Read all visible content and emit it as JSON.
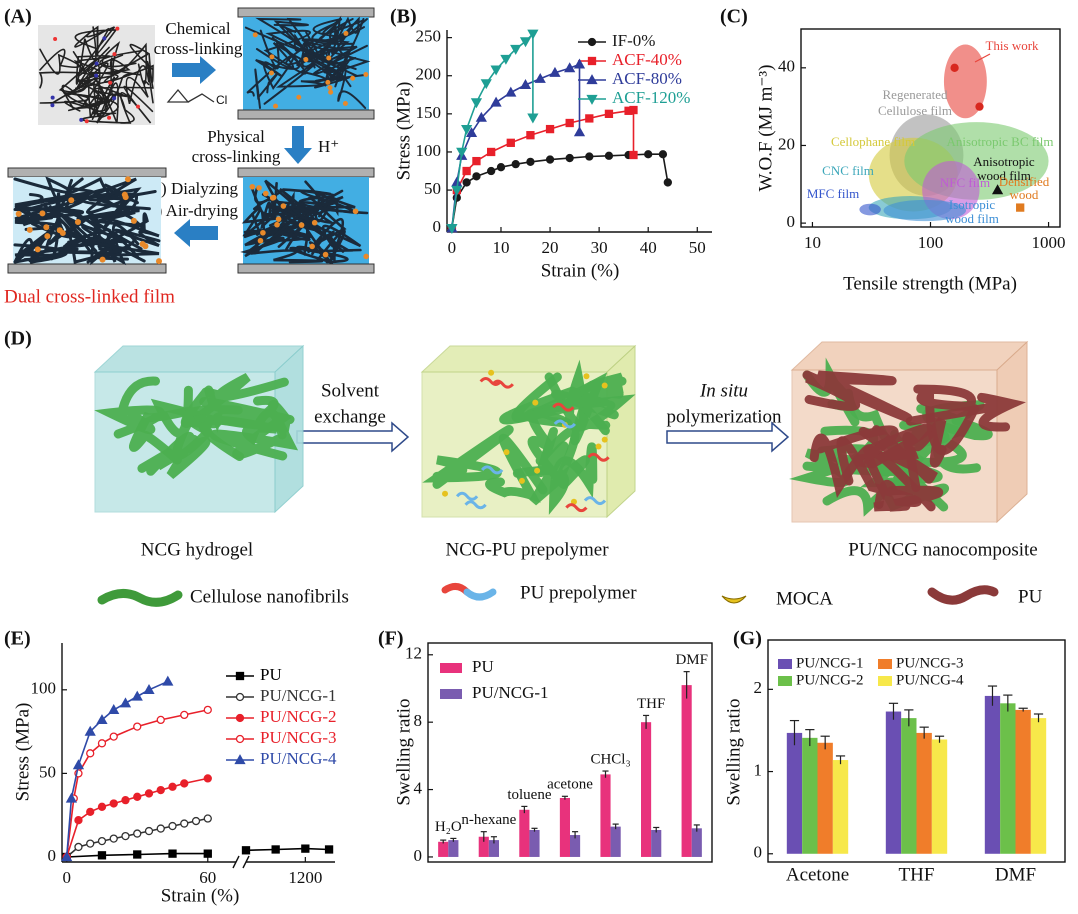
{
  "chart_data": [
    {
      "type": "line",
      "panel": "(B)",
      "x_label": "Strain (%)",
      "y_label": "Stress (MPa)",
      "frame": "axes",
      "xlim": [
        -1,
        53
      ],
      "ylim": [
        -5,
        260
      ],
      "xticks": [
        0,
        10,
        20,
        30,
        40,
        50
      ],
      "yticks": [
        0,
        50,
        100,
        150,
        200,
        250
      ],
      "legend": "upper right",
      "series": [
        {
          "name": "IF-0%",
          "color": "#1a1a1a",
          "marker": "circle",
          "filled": true,
          "x": [
            0,
            1,
            3,
            5,
            8,
            10,
            13,
            16,
            20,
            24,
            28,
            32,
            36,
            40,
            43,
            44
          ],
          "values": [
            0,
            40,
            60,
            68,
            75,
            80,
            84,
            87,
            90,
            92,
            94,
            95,
            96,
            97,
            97,
            60
          ]
        },
        {
          "name": "ACF-40%",
          "color": "#e8202a",
          "marker": "square",
          "filled": true,
          "x": [
            0,
            1,
            3,
            5,
            8,
            12,
            16,
            20,
            24,
            28,
            32,
            36,
            37,
            37
          ],
          "values": [
            0,
            50,
            75,
            88,
            100,
            112,
            122,
            130,
            138,
            144,
            150,
            154,
            155,
            96
          ]
        },
        {
          "name": "ACF-80%",
          "color": "#2f3c9a",
          "marker": "triangle-up",
          "filled": true,
          "x": [
            0,
            1,
            2,
            4,
            6,
            9,
            12,
            15,
            18,
            21,
            24,
            26,
            26
          ],
          "values": [
            0,
            60,
            95,
            125,
            145,
            165,
            178,
            188,
            196,
            204,
            210,
            215,
            126
          ]
        },
        {
          "name": "ACF-120%",
          "color": "#1e9f94",
          "marker": "triangle-down",
          "filled": true,
          "x": [
            0,
            1,
            2,
            3,
            5,
            7,
            9,
            11,
            13,
            15,
            16.5,
            16.5
          ],
          "values": [
            0,
            50,
            100,
            130,
            165,
            190,
            208,
            222,
            235,
            245,
            255,
            145
          ]
        }
      ]
    },
    {
      "type": "scatter",
      "panel": "(C)",
      "x_label": "Tensile strength (MPa)",
      "y_label": "W.O.F (MJ m⁻³)",
      "frame": "box",
      "xscale": "log",
      "xlim": [
        8,
        1250
      ],
      "ylim": [
        -1,
        50
      ],
      "xticks": [
        10,
        100,
        1000
      ],
      "yticks": [
        0,
        20,
        40
      ],
      "regions": [
        {
          "name": [
            "This work"
          ],
          "color": "#e8453c",
          "x": [
            130,
            300
          ],
          "y": [
            27,
            46
          ]
        },
        {
          "name": [
            "Regenerated",
            "Cellulose film"
          ],
          "color": "#9a9a9a",
          "x": [
            45,
            190
          ],
          "y": [
            7,
            28
          ]
        },
        {
          "name": [
            "Cellophane film"
          ],
          "color": "#d4c93a",
          "x": [
            30,
            170
          ],
          "y": [
            3,
            22
          ]
        },
        {
          "name": [
            "Anisotropic BC film"
          ],
          "color": "#7bc96f",
          "x": [
            60,
            1000
          ],
          "y": [
            6,
            26
          ]
        },
        {
          "name": [
            "CNC film"
          ],
          "color": "#3aa6b9",
          "x": [
            30,
            150
          ],
          "y": [
            1,
            7
          ]
        },
        {
          "name": [
            "MFC film"
          ],
          "color": "#3355cc",
          "x": [
            25,
            38
          ],
          "y": [
            2,
            5
          ]
        },
        {
          "name": [
            "NFC film"
          ],
          "color": "#c05bd6",
          "x": [
            85,
            260
          ],
          "y": [
            1,
            16
          ]
        },
        {
          "name": [
            "Isotropic",
            "wood film"
          ],
          "color": "#3d8fd6",
          "x": [
            40,
            200
          ],
          "y": [
            0.5,
            6
          ]
        }
      ],
      "series": [
        {
          "color": "#d8281f",
          "marker": "circle",
          "filled": true,
          "x": [
            160,
            260
          ],
          "values": [
            40,
            30
          ]
        },
        {
          "name": [
            "Anisotropic",
            "wood film"
          ],
          "color": "#111111",
          "marker": "triangle-up",
          "filled": true,
          "x": [
            370
          ],
          "values": [
            8.5
          ]
        },
        {
          "name": [
            "Densified",
            "wood"
          ],
          "color": "#e07b20",
          "marker": "square",
          "filled": true,
          "x": [
            575
          ],
          "values": [
            4
          ]
        }
      ]
    },
    {
      "type": "line",
      "panel": "(E)",
      "x_label": "Strain (%)",
      "y_label": "Stress (MPa)",
      "frame": "axes",
      "xlim": [
        -2,
        1300
      ],
      "xbreak": [
        72,
        1000
      ],
      "ylim": [
        -3,
        128
      ],
      "xticks": [
        0,
        60,
        1200
      ],
      "yticks": [
        0,
        50,
        100
      ],
      "legend": "upper right",
      "series": [
        {
          "name": "PU",
          "color": "#000000",
          "marker": "square",
          "filled": true,
          "x": [
            0,
            15,
            30,
            45,
            60,
            1000,
            1100,
            1200,
            1280
          ],
          "values": [
            0,
            1,
            1.5,
            2,
            2,
            4,
            4.5,
            5,
            4.5
          ]
        },
        {
          "name": "PU/NCG-1",
          "color": "#333333",
          "marker": "circle",
          "filled": false,
          "x": [
            0,
            5,
            10,
            15,
            20,
            25,
            30,
            35,
            40,
            45,
            50,
            55,
            60
          ],
          "values": [
            0,
            6,
            8,
            9.5,
            11,
            12.5,
            14,
            15.5,
            17,
            18.5,
            20,
            21.5,
            23
          ]
        },
        {
          "name": "PU/NCG-2",
          "color": "#e8202a",
          "marker": "circle",
          "filled": true,
          "x": [
            0,
            5,
            10,
            15,
            20,
            25,
            30,
            35,
            40,
            45,
            50,
            60
          ],
          "values": [
            0,
            22,
            27,
            30,
            32,
            34,
            36,
            38,
            40,
            42,
            44,
            47
          ]
        },
        {
          "name": "PU/NCG-3",
          "color": "#e8202a",
          "marker": "circle",
          "filled": false,
          "x": [
            0,
            3,
            5,
            10,
            15,
            20,
            30,
            40,
            50,
            60
          ],
          "values": [
            0,
            35,
            50,
            62,
            68,
            72,
            78,
            82,
            85,
            88
          ]
        },
        {
          "name": "PU/NCG-4",
          "color": "#2f4aa8",
          "marker": "triangle-up",
          "filled": true,
          "x": [
            0,
            2,
            5,
            10,
            15,
            20,
            25,
            30,
            35,
            43
          ],
          "values": [
            0,
            35,
            55,
            75,
            82,
            88,
            92,
            96,
            100,
            105
          ]
        }
      ]
    },
    {
      "type": "bar",
      "panel": "(F)",
      "y_label": "Swelling ratio",
      "frame": "box",
      "category_labels": "above",
      "categories": [
        "H₂O",
        "n-hexane",
        "toluene",
        "acetone",
        "CHCl₃",
        "THF",
        "DMF"
      ],
      "ylim": [
        -0.3,
        12.7
      ],
      "yticks": [
        0,
        4,
        8,
        12
      ],
      "legend": "upper left",
      "series": [
        {
          "name": "PU",
          "color": "#e8327c",
          "values": [
            0.9,
            1.2,
            2.8,
            3.5,
            4.9,
            8.0,
            10.2
          ],
          "errors": [
            0.1,
            0.3,
            0.2,
            0.1,
            0.2,
            0.4,
            0.8
          ]
        },
        {
          "name": "PU/NCG-1",
          "color": "#7a5cb0",
          "values": [
            1.0,
            1.0,
            1.6,
            1.3,
            1.8,
            1.6,
            1.7
          ],
          "errors": [
            0.1,
            0.2,
            0.1,
            0.2,
            0.15,
            0.15,
            0.2
          ]
        }
      ]
    },
    {
      "type": "bar",
      "panel": "(G)",
      "y_label": "Swelling ratio",
      "frame": "box",
      "category_labels": "axis",
      "categories": [
        "Acetone",
        "THF",
        "DMF"
      ],
      "ylim": [
        -0.1,
        2.6
      ],
      "yticks": [
        0,
        1,
        2
      ],
      "legend": "upper center",
      "legend_columns": 2,
      "series": [
        {
          "name": "PU/NCG-1",
          "color": "#6a4fb3",
          "values": [
            1.47,
            1.73,
            1.92
          ],
          "errors": [
            0.15,
            0.1,
            0.12
          ]
        },
        {
          "name": "PU/NCG-2",
          "color": "#6cc04a",
          "values": [
            1.41,
            1.65,
            1.83
          ],
          "errors": [
            0.1,
            0.1,
            0.1
          ]
        },
        {
          "name": "PU/NCG-3",
          "color": "#f07d2a",
          "values": [
            1.35,
            1.47,
            1.75
          ],
          "errors": [
            0.08,
            0.07,
            0.02
          ]
        },
        {
          "name": "PU/NCG-4",
          "color": "#f7e84a",
          "values": [
            1.14,
            1.39,
            1.65
          ],
          "errors": [
            0.05,
            0.04,
            0.05
          ]
        }
      ]
    }
  ],
  "diagram_a": {
    "panel": "(A)",
    "chemical": [
      "Chemical",
      "cross-linking"
    ],
    "reagent": "Cl",
    "physical": [
      "Physical",
      "cross-linking"
    ],
    "acid": "H⁺",
    "drying": [
      "i) Dialyzing",
      "ii) Air-drying"
    ],
    "result": "Dual cross-linked film"
  },
  "diagram_d": {
    "panel": "(D)",
    "step1": [
      "Solvent",
      "exchange"
    ],
    "step2": [
      "In situ",
      "polymerization"
    ],
    "stages": [
      "NCG hydrogel",
      "NCG-PU prepolymer",
      "PU/NCG nanocomposite"
    ],
    "legend": [
      "Cellulose nanofibrils",
      "PU prepolymer",
      "MOCA",
      "PU"
    ]
  }
}
